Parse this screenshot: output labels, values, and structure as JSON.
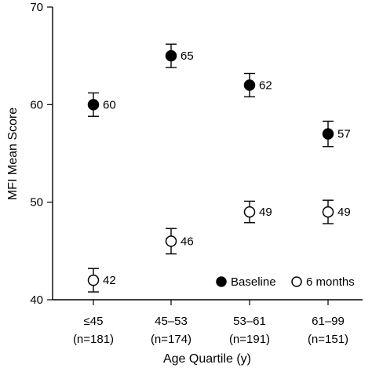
{
  "chart_data": {
    "type": "scatter",
    "ylabel": "MFI Mean Score",
    "xlabel": "Age Quartile (y)",
    "ylim": [
      40,
      70
    ],
    "yticks": [
      40,
      50,
      60,
      70
    ],
    "categories": [
      {
        "range": "≤45",
        "n": "(n=181)"
      },
      {
        "range": "45–53",
        "n": "(n=174)"
      },
      {
        "range": "53–61",
        "n": "(n=191)"
      },
      {
        "range": "61–99",
        "n": "(n=151)"
      }
    ],
    "series": [
      {
        "name": "Baseline",
        "marker": "filled-circle",
        "values": [
          60,
          65,
          62,
          57
        ],
        "error": [
          1.2,
          1.2,
          1.2,
          1.3
        ],
        "labels": [
          "60",
          "65",
          "62",
          "57"
        ]
      },
      {
        "name": "6 months",
        "marker": "open-circle",
        "values": [
          42,
          46,
          49,
          49
        ],
        "error": [
          1.2,
          1.3,
          1.1,
          1.2
        ],
        "labels": [
          "42",
          "46",
          "49",
          "49"
        ]
      }
    ],
    "legend_position": "bottom-right",
    "grid": false
  }
}
